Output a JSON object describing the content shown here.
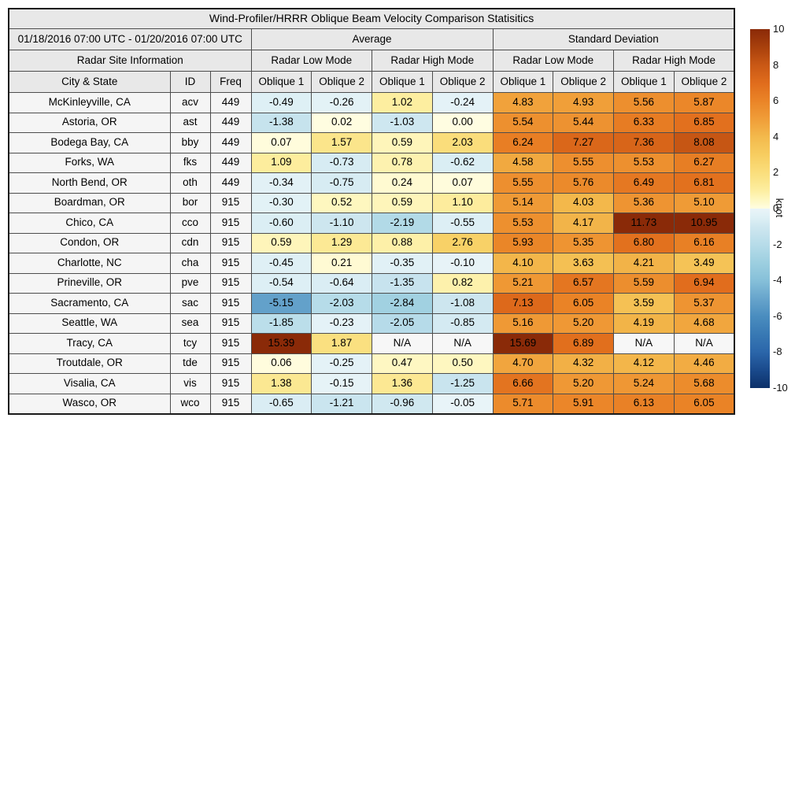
{
  "title": "Wind-Profiler/HRRR Oblique Beam Velocity Comparison Statisitics",
  "header": {
    "date_range": "01/18/2016 07:00 UTC - 01/20/2016 07:00 UTC",
    "average": "Average",
    "std_dev": "Standard Deviation",
    "radar_site_info": "Radar Site Information",
    "low_mode": "Radar Low Mode",
    "high_mode": "Radar High Mode",
    "city_state": "City & State",
    "id": "ID",
    "freq": "Freq",
    "oblique1": "Oblique 1",
    "oblique2": "Oblique 2"
  },
  "colors": {
    "header_bg": "#e8e8e8",
    "label_cell_bg": "#f5f5f5",
    "na_bg": "#f7f7f7",
    "grid_border": "#4d4d4d",
    "outer_border": "#1a1a1a"
  },
  "colorbar": {
    "unit": "knot",
    "min": -10,
    "max": 10,
    "ticks": [
      "10",
      "8",
      "6",
      "4",
      "2",
      "0",
      "-2",
      "-4",
      "-6",
      "-8",
      "-10"
    ],
    "stops": [
      [
        -10,
        "#0c3069"
      ],
      [
        -9,
        "#1a4a8c"
      ],
      [
        -8,
        "#2b66aa"
      ],
      [
        -7,
        "#3879b4"
      ],
      [
        -6,
        "#4a8dbf"
      ],
      [
        -5,
        "#68a5cc"
      ],
      [
        -4,
        "#86c0d9"
      ],
      [
        -3,
        "#9dcfe0"
      ],
      [
        -2,
        "#b7dce9"
      ],
      [
        -1,
        "#cfe7f0"
      ],
      [
        -0.5,
        "#def0f5"
      ],
      [
        -0.01,
        "#e9f4f8"
      ],
      [
        0,
        "#fffde1"
      ],
      [
        0.5,
        "#fef7c0"
      ],
      [
        1,
        "#fdeea1"
      ],
      [
        1.5,
        "#fbe68d"
      ],
      [
        2,
        "#fade7c"
      ],
      [
        3,
        "#f7cd60"
      ],
      [
        4,
        "#f3b94c"
      ],
      [
        5,
        "#f09d38"
      ],
      [
        6,
        "#ea8427"
      ],
      [
        7,
        "#e06c1c"
      ],
      [
        8,
        "#c95815"
      ],
      [
        9,
        "#a8400c"
      ],
      [
        10,
        "#8a2a08"
      ]
    ]
  },
  "chart_data": {
    "type": "table",
    "subtype": "heatmap-table",
    "title": "Wind-Profiler/HRRR Oblique Beam Velocity Comparison Statisitics",
    "period": "01/18/2016 07:00 UTC - 01/20/2016 07:00 UTC",
    "unit": "knot",
    "value_range": [
      -10,
      10
    ],
    "column_groups": [
      "Radar Site Information",
      "Average / Radar Low Mode",
      "Average / Radar High Mode",
      "Standard Deviation / Radar Low Mode",
      "Standard Deviation / Radar High Mode"
    ],
    "columns": [
      "City & State",
      "ID",
      "Freq",
      "Avg Low Oblique 1",
      "Avg Low Oblique 2",
      "Avg High Oblique 1",
      "Avg High Oblique 2",
      "SD Low Oblique 1",
      "SD Low Oblique 2",
      "SD High Oblique 1",
      "SD High Oblique 2"
    ],
    "rows": [
      {
        "city": "McKinleyville, CA",
        "id": "acv",
        "freq": "449",
        "values": [
          "-0.49",
          "-0.26",
          "1.02",
          "-0.24",
          "4.83",
          "4.93",
          "5.56",
          "5.87"
        ]
      },
      {
        "city": "Astoria, OR",
        "id": "ast",
        "freq": "449",
        "values": [
          "-1.38",
          "0.02",
          "-1.03",
          "0.00",
          "5.54",
          "5.44",
          "6.33",
          "6.85"
        ]
      },
      {
        "city": "Bodega Bay, CA",
        "id": "bby",
        "freq": "449",
        "values": [
          "0.07",
          "1.57",
          "0.59",
          "2.03",
          "6.24",
          "7.27",
          "7.36",
          "8.08"
        ]
      },
      {
        "city": "Forks, WA",
        "id": "fks",
        "freq": "449",
        "values": [
          "1.09",
          "-0.73",
          "0.78",
          "-0.62",
          "4.58",
          "5.55",
          "5.53",
          "6.27"
        ]
      },
      {
        "city": "North Bend, OR",
        "id": "oth",
        "freq": "449",
        "values": [
          "-0.34",
          "-0.75",
          "0.24",
          "0.07",
          "5.55",
          "5.76",
          "6.49",
          "6.81"
        ]
      },
      {
        "city": "Boardman, OR",
        "id": "bor",
        "freq": "915",
        "values": [
          "-0.30",
          "0.52",
          "0.59",
          "1.10",
          "5.14",
          "4.03",
          "5.36",
          "5.10"
        ]
      },
      {
        "city": "Chico, CA",
        "id": "cco",
        "freq": "915",
        "values": [
          "-0.60",
          "-1.10",
          "-2.19",
          "-0.55",
          "5.53",
          "4.17",
          "11.73",
          "10.95"
        ]
      },
      {
        "city": "Condon, OR",
        "id": "cdn",
        "freq": "915",
        "values": [
          "0.59",
          "1.29",
          "0.88",
          "2.76",
          "5.93",
          "5.35",
          "6.80",
          "6.16"
        ]
      },
      {
        "city": "Charlotte, NC",
        "id": "cha",
        "freq": "915",
        "values": [
          "-0.45",
          "0.21",
          "-0.35",
          "-0.10",
          "4.10",
          "3.63",
          "4.21",
          "3.49"
        ]
      },
      {
        "city": "Prineville, OR",
        "id": "pve",
        "freq": "915",
        "values": [
          "-0.54",
          "-0.64",
          "-1.35",
          "0.82",
          "5.21",
          "6.57",
          "5.59",
          "6.94"
        ]
      },
      {
        "city": "Sacramento, CA",
        "id": "sac",
        "freq": "915",
        "values": [
          "-5.15",
          "-2.03",
          "-2.84",
          "-1.08",
          "7.13",
          "6.05",
          "3.59",
          "5.37"
        ]
      },
      {
        "city": "Seattle, WA",
        "id": "sea",
        "freq": "915",
        "values": [
          "-1.85",
          "-0.23",
          "-2.05",
          "-0.85",
          "5.16",
          "5.20",
          "4.19",
          "4.68"
        ]
      },
      {
        "city": "Tracy, CA",
        "id": "tcy",
        "freq": "915",
        "values": [
          "15.39",
          "1.87",
          "N/A",
          "N/A",
          "15.69",
          "6.89",
          "N/A",
          "N/A"
        ]
      },
      {
        "city": "Troutdale, OR",
        "id": "tde",
        "freq": "915",
        "values": [
          "0.06",
          "-0.25",
          "0.47",
          "0.50",
          "4.70",
          "4.32",
          "4.12",
          "4.46"
        ]
      },
      {
        "city": "Visalia, CA",
        "id": "vis",
        "freq": "915",
        "values": [
          "1.38",
          "-0.15",
          "1.36",
          "-1.25",
          "6.66",
          "5.20",
          "5.24",
          "5.68"
        ]
      },
      {
        "city": "Wasco, OR",
        "id": "wco",
        "freq": "915",
        "values": [
          "-0.65",
          "-1.21",
          "-0.96",
          "-0.05",
          "5.71",
          "5.91",
          "6.13",
          "6.05"
        ]
      }
    ]
  }
}
